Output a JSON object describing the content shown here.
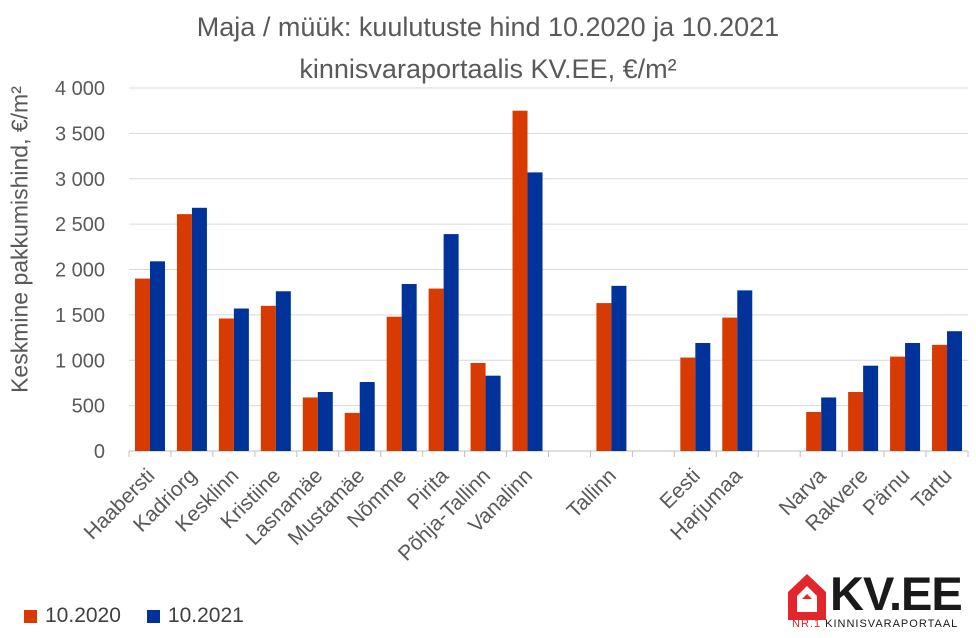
{
  "chart_data": {
    "type": "bar",
    "title": "Maja / müük: kuulutuste hind 10.2020 ja 10.2021",
    "subtitle": "kinnisvaraportaalis KV.EE, €/m²",
    "ylabel": "Keskmine pakkumishind, €/m²",
    "xlabel": "",
    "ylim": [
      0,
      4000
    ],
    "yticks": [
      0,
      500,
      1000,
      1500,
      2000,
      2500,
      3000,
      3500,
      4000
    ],
    "ytick_labels": [
      "0",
      "500",
      "1 000",
      "1 500",
      "2 000",
      "2 500",
      "3 000",
      "3 500",
      "4 000"
    ],
    "grid": true,
    "legend_position": "bottom-left",
    "categories": [
      "Haabersti",
      "Kadriorg",
      "Kesklinn",
      "Kristiine",
      "Lasnamäe",
      "Mustamäe",
      "Nõmme",
      "Pirita",
      "Põhja-Tallinn",
      "Vanalinn",
      "",
      "Tallinn",
      "",
      "Eesti",
      "Harjumaa",
      "",
      "Narva",
      "Rakvere",
      "Pärnu",
      "Tartu"
    ],
    "series": [
      {
        "name": "10.2020",
        "color": "#d83b01",
        "values": [
          1900,
          2610,
          1460,
          1600,
          590,
          420,
          1480,
          1790,
          970,
          3750,
          null,
          1630,
          null,
          1030,
          1470,
          null,
          430,
          650,
          1040,
          1170
        ]
      },
      {
        "name": "10.2021",
        "color": "#003399",
        "values": [
          2090,
          2680,
          1570,
          1760,
          650,
          760,
          1840,
          2390,
          830,
          3070,
          null,
          1820,
          null,
          1190,
          1770,
          null,
          590,
          940,
          1190,
          1320
        ]
      }
    ]
  },
  "logo": {
    "brand": "KV.EE",
    "tagline_prefix": "NR.1",
    "tagline": "KINNISVARAPORTAAL"
  }
}
